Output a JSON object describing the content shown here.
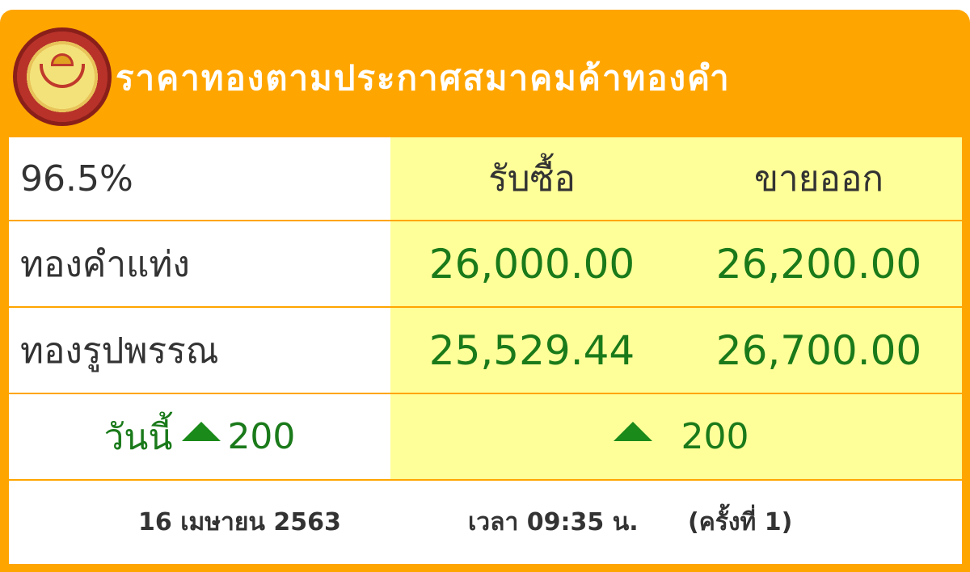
{
  "header": {
    "title": "ราคาทองตามประกาศสมาคมค้าทองคำ",
    "logo": "สมาคมค้าทองคำ"
  },
  "columns": {
    "purity": "96.5%",
    "buy": "รับซื้อ",
    "sell": "ขายออก"
  },
  "rows": [
    {
      "label": "ทองคำแท่ง",
      "buy": "26,000.00",
      "sell": "26,200.00"
    },
    {
      "label": "ทองรูปพรรณ",
      "buy": "25,529.44",
      "sell": "26,700.00"
    }
  ],
  "change": {
    "label": "วันนี้",
    "today": "200",
    "direction": "up",
    "right": "200",
    "color": "#1a7a1a"
  },
  "footer": {
    "date": "16 เมษายน 2563",
    "time": "เวลา 09:35 น.",
    "round": "(ครั้งที่ 1)"
  },
  "colors": {
    "accent": "#FFA500",
    "highlight": "#FFFF99"
  }
}
